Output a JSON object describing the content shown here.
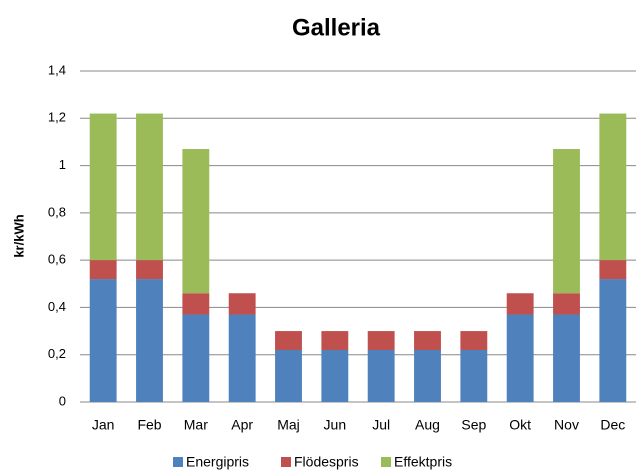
{
  "chart_data": {
    "type": "bar",
    "stacked": true,
    "title": "Galleria",
    "y_label": "kr/kWh",
    "categories": [
      "Jan",
      "Feb",
      "Mar",
      "Apr",
      "Maj",
      "Jun",
      "Jul",
      "Aug",
      "Sep",
      "Okt",
      "Nov",
      "Dec"
    ],
    "series": [
      {
        "name": "Energipris",
        "color": "#4f81bd",
        "values": [
          0.52,
          0.52,
          0.37,
          0.37,
          0.22,
          0.22,
          0.22,
          0.22,
          0.22,
          0.37,
          0.37,
          0.52
        ]
      },
      {
        "name": "Flödespris",
        "color": "#c0504d",
        "values": [
          0.08,
          0.08,
          0.09,
          0.09,
          0.08,
          0.08,
          0.08,
          0.08,
          0.08,
          0.09,
          0.09,
          0.08
        ]
      },
      {
        "name": "Effektpris",
        "color": "#9bbb59",
        "values": [
          0.62,
          0.62,
          0.61,
          0,
          0,
          0,
          0,
          0,
          0,
          0,
          0.61,
          0.62
        ]
      }
    ],
    "ylim": [
      0,
      1.4
    ],
    "yticks": [
      0,
      {
        "value": 0.2,
        "label": "0,2"
      },
      {
        "value": 0.4,
        "label": "0,4"
      },
      {
        "value": 0.6,
        "label": "0,6"
      },
      {
        "value": 0.8,
        "label": "0,8"
      },
      1,
      {
        "value": 1.2,
        "label": "1,2"
      },
      {
        "value": 1.4,
        "label": "1,4"
      }
    ],
    "grid": true,
    "legend": "bottom"
  }
}
